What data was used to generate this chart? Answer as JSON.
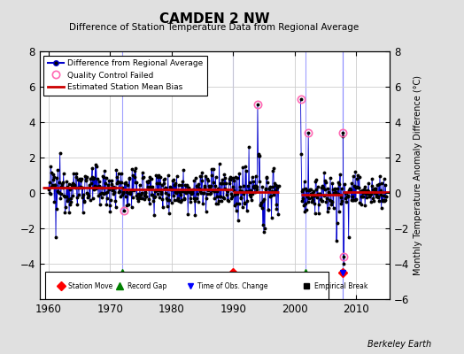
{
  "title": "CAMDEN 2 NW",
  "subtitle": "Difference of Station Temperature Data from Regional Average",
  "ylabel": "Monthly Temperature Anomaly Difference (°C)",
  "xlim": [
    1958.5,
    2015.5
  ],
  "ylim": [
    -6,
    8
  ],
  "yticks_left": [
    -4,
    -2,
    0,
    2,
    4,
    6,
    8
  ],
  "yticks_right": [
    -6,
    -4,
    -2,
    0,
    2,
    4,
    6,
    8
  ],
  "xticks": [
    1960,
    1970,
    1980,
    1990,
    2000,
    2010
  ],
  "background_color": "#e0e0e0",
  "plot_bg_color": "#ffffff",
  "line_color": "#0000cc",
  "bias_color": "#cc0000",
  "data_dot_color": "#000000",
  "qc_fail_color": "#ff69b4",
  "grid_color": "#cccccc",
  "segment_biases": [
    {
      "x_start": 1959.0,
      "x_end": 1972.0,
      "bias": 0.3
    },
    {
      "x_start": 1972.0,
      "x_end": 1990.0,
      "bias": 0.2
    },
    {
      "x_start": 1990.0,
      "x_end": 1997.5,
      "bias": 0.05
    },
    {
      "x_start": 2001.0,
      "x_end": 2007.8,
      "bias": -0.1
    },
    {
      "x_start": 2007.8,
      "x_end": 2015.5,
      "bias": 0.05
    }
  ],
  "station_moves": [
    1990.0,
    2007.8
  ],
  "record_gaps": [
    1972.0,
    2001.8
  ],
  "time_of_obs_changes": [
    2007.8
  ],
  "empirical_breaks": [],
  "gap_start": 1997.5,
  "gap_end": 2001.0,
  "event_y": -4.5,
  "watermark": "Berkeley Earth",
  "seed": 12345
}
